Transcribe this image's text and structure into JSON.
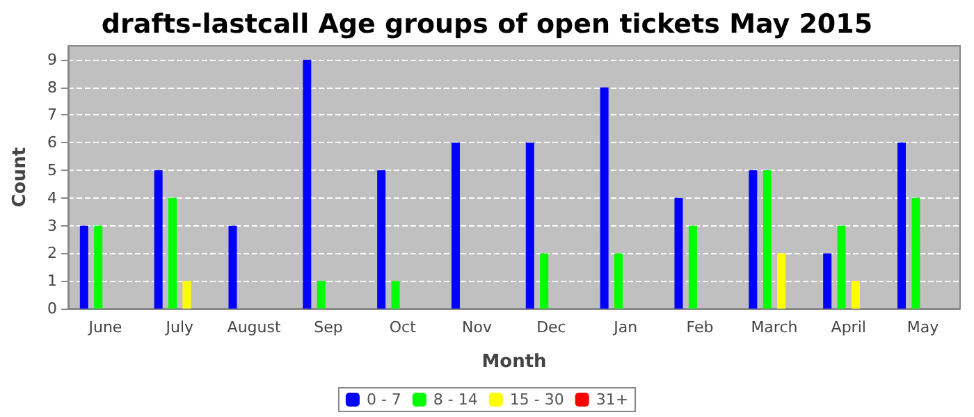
{
  "chart_data": {
    "type": "bar",
    "title": "drafts-lastcall Age groups of open tickets May 2015",
    "xlabel": "Month",
    "ylabel": "Count",
    "categories": [
      "June",
      "July",
      "August",
      "Sep",
      "Oct",
      "Nov",
      "Dec",
      "Jan",
      "Feb",
      "March",
      "April",
      "May"
    ],
    "series": [
      {
        "name": "0 - 7",
        "color": "#0000ff",
        "values": [
          3,
          5,
          3,
          9,
          5,
          6,
          6,
          8,
          4,
          5,
          2,
          6
        ]
      },
      {
        "name": "8 - 14",
        "color": "#00ff00",
        "values": [
          3,
          4,
          0,
          1,
          1,
          0,
          2,
          2,
          3,
          5,
          3,
          4
        ]
      },
      {
        "name": "15 - 30",
        "color": "#ffff00",
        "values": [
          0,
          1,
          0,
          0,
          0,
          0,
          0,
          0,
          0,
          2,
          1,
          0
        ]
      },
      {
        "name": "31+",
        "color": "#ff0000",
        "values": [
          0,
          0,
          0,
          0,
          0,
          0,
          0,
          0,
          0,
          0,
          0,
          0
        ]
      }
    ],
    "ylim": [
      0,
      9.5
    ],
    "yticks": [
      0,
      1,
      2,
      3,
      4,
      5,
      6,
      7,
      8,
      9
    ],
    "grid": "y",
    "legend": "bottom"
  }
}
